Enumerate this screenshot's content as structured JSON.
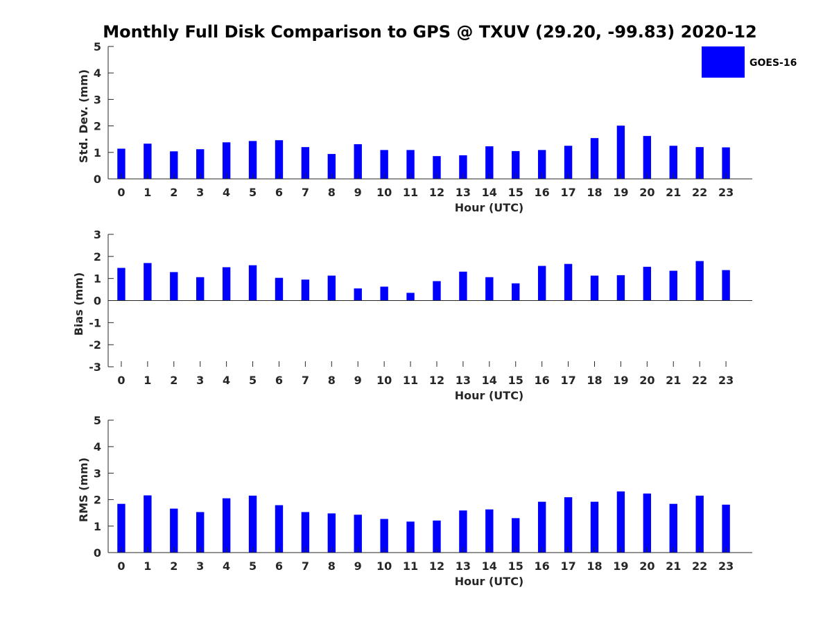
{
  "title": "Monthly Full Disk Comparison to GPS @ TXUV (29.20, -99.83) 2020-12",
  "legend": {
    "label": "GOES-16",
    "color": "#0000ff"
  },
  "chart_data": [
    {
      "type": "bar",
      "ylabel": "Std. Dev. (mm)",
      "xlabel": "Hour (UTC)",
      "ylim": [
        0,
        5
      ],
      "yticks": [
        0,
        1,
        2,
        3,
        4,
        5
      ],
      "categories": [
        "0",
        "1",
        "2",
        "3",
        "4",
        "5",
        "6",
        "7",
        "8",
        "9",
        "10",
        "11",
        "12",
        "13",
        "14",
        "15",
        "16",
        "17",
        "18",
        "19",
        "20",
        "21",
        "22",
        "23"
      ],
      "series": [
        {
          "name": "GOES-16",
          "color": "#0000ff",
          "values": [
            1.14,
            1.33,
            1.04,
            1.12,
            1.38,
            1.43,
            1.46,
            1.2,
            0.94,
            1.31,
            1.09,
            1.09,
            0.86,
            0.89,
            1.23,
            1.05,
            1.09,
            1.25,
            1.54,
            2.01,
            1.62,
            1.25,
            1.2,
            1.19
          ]
        }
      ],
      "grid": false
    },
    {
      "type": "bar",
      "ylabel": "Bias (mm)",
      "xlabel": "Hour (UTC)",
      "ylim": [
        -3,
        3
      ],
      "yticks": [
        -3,
        -2,
        -1,
        0,
        1,
        2,
        3
      ],
      "categories": [
        "0",
        "1",
        "2",
        "3",
        "4",
        "5",
        "6",
        "7",
        "8",
        "9",
        "10",
        "11",
        "12",
        "13",
        "14",
        "15",
        "16",
        "17",
        "18",
        "19",
        "20",
        "21",
        "22",
        "23"
      ],
      "series": [
        {
          "name": "GOES-16",
          "color": "#0000ff",
          "values": [
            1.48,
            1.7,
            1.29,
            1.06,
            1.51,
            1.6,
            1.03,
            0.95,
            1.13,
            0.55,
            0.63,
            0.35,
            0.88,
            1.31,
            1.06,
            0.78,
            1.57,
            1.66,
            1.13,
            1.15,
            1.53,
            1.35,
            1.79,
            1.38
          ]
        }
      ],
      "grid": false
    },
    {
      "type": "bar",
      "ylabel": "RMS (mm)",
      "xlabel": "Hour (UTC)",
      "ylim": [
        0,
        5
      ],
      "yticks": [
        0,
        1,
        2,
        3,
        4,
        5
      ],
      "categories": [
        "0",
        "1",
        "2",
        "3",
        "4",
        "5",
        "6",
        "7",
        "8",
        "9",
        "10",
        "11",
        "12",
        "13",
        "14",
        "15",
        "16",
        "17",
        "18",
        "19",
        "20",
        "21",
        "22",
        "23"
      ],
      "series": [
        {
          "name": "GOES-16",
          "color": "#0000ff",
          "values": [
            1.84,
            2.16,
            1.66,
            1.53,
            2.05,
            2.15,
            1.79,
            1.53,
            1.48,
            1.43,
            1.27,
            1.17,
            1.21,
            1.59,
            1.63,
            1.3,
            1.92,
            2.09,
            1.92,
            2.31,
            2.23,
            1.84,
            2.15,
            1.81
          ]
        }
      ],
      "grid": false
    }
  ]
}
